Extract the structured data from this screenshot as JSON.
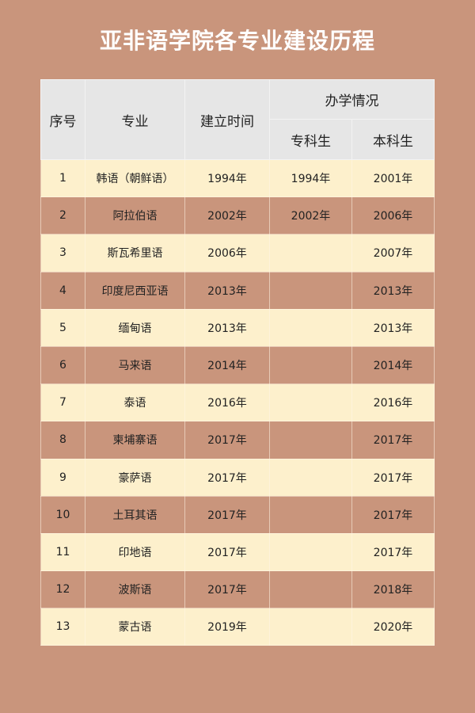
{
  "title": "亚非语学院各专业建设历程",
  "colors": {
    "background": "#c9957c",
    "row_light": "#fdf0cc",
    "header": "#e6e6e6"
  },
  "headers": {
    "index": "序号",
    "major": "专业",
    "established": "建立时间",
    "program": "办学情况",
    "junior_college": "专科生",
    "undergraduate": "本科生"
  },
  "rows": [
    {
      "index": "1",
      "major": "韩语（朝鲜语）",
      "established": "1994年",
      "junior_college": "1994年",
      "undergraduate": "2001年"
    },
    {
      "index": "2",
      "major": "阿拉伯语",
      "established": "2002年",
      "junior_college": "2002年",
      "undergraduate": "2006年"
    },
    {
      "index": "3",
      "major": "斯瓦希里语",
      "established": "2006年",
      "junior_college": "",
      "undergraduate": "2007年"
    },
    {
      "index": "4",
      "major": "印度尼西亚语",
      "established": "2013年",
      "junior_college": "",
      "undergraduate": "2013年"
    },
    {
      "index": "5",
      "major": "缅甸语",
      "established": "2013年",
      "junior_college": "",
      "undergraduate": "2013年"
    },
    {
      "index": "6",
      "major": "马来语",
      "established": "2014年",
      "junior_college": "",
      "undergraduate": "2014年"
    },
    {
      "index": "7",
      "major": "泰语",
      "established": "2016年",
      "junior_college": "",
      "undergraduate": "2016年"
    },
    {
      "index": "8",
      "major": "柬埔寨语",
      "established": "2017年",
      "junior_college": "",
      "undergraduate": "2017年"
    },
    {
      "index": "9",
      "major": "豪萨语",
      "established": "2017年",
      "junior_college": "",
      "undergraduate": "2017年"
    },
    {
      "index": "10",
      "major": "土耳其语",
      "established": "2017年",
      "junior_college": "",
      "undergraduate": "2017年"
    },
    {
      "index": "11",
      "major": "印地语",
      "established": "2017年",
      "junior_college": "",
      "undergraduate": "2017年"
    },
    {
      "index": "12",
      "major": "波斯语",
      "established": "2017年",
      "junior_college": "",
      "undergraduate": "2018年"
    },
    {
      "index": "13",
      "major": "蒙古语",
      "established": "2019年",
      "junior_college": "",
      "undergraduate": "2020年"
    }
  ]
}
